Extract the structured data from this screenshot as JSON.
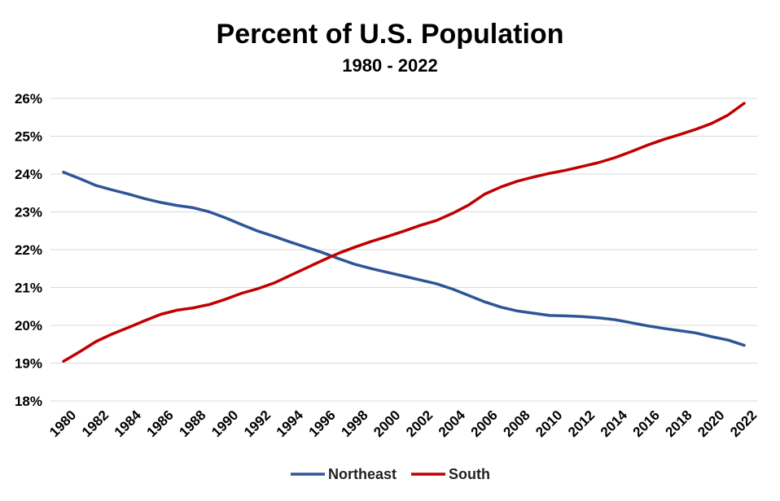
{
  "chart_data": {
    "type": "line",
    "title": "Percent of U.S. Population",
    "subtitle": "1980 - 2022",
    "xlabel": "",
    "ylabel": "",
    "x": [
      1980,
      1981,
      1982,
      1983,
      1984,
      1985,
      1986,
      1987,
      1988,
      1989,
      1990,
      1991,
      1992,
      1993,
      1994,
      1995,
      1996,
      1997,
      1998,
      1999,
      2000,
      2001,
      2002,
      2003,
      2004,
      2005,
      2006,
      2007,
      2008,
      2009,
      2010,
      2011,
      2012,
      2013,
      2014,
      2015,
      2016,
      2017,
      2018,
      2019,
      2020,
      2021,
      2022
    ],
    "x_tick_labels": [
      "1980",
      "1982",
      "1984",
      "1986",
      "1988",
      "1990",
      "1992",
      "1994",
      "1996",
      "1998",
      "2000",
      "2002",
      "2004",
      "2006",
      "2008",
      "2010",
      "2012",
      "2014",
      "2016",
      "2018",
      "2020",
      "2022"
    ],
    "ylim": [
      18,
      26
    ],
    "y_tick_labels": [
      "18%",
      "19%",
      "20%",
      "21%",
      "22%",
      "23%",
      "24%",
      "25%",
      "26%"
    ],
    "grid": true,
    "legend_position": "bottom",
    "series": [
      {
        "name": "Northeast",
        "color": "#2f5597",
        "values": [
          24.05,
          23.88,
          23.7,
          23.58,
          23.47,
          23.35,
          23.25,
          23.17,
          23.11,
          23.0,
          22.84,
          22.66,
          22.49,
          22.35,
          22.2,
          22.06,
          21.92,
          21.76,
          21.61,
          21.5,
          21.4,
          21.3,
          21.2,
          21.1,
          20.96,
          20.79,
          20.62,
          20.48,
          20.38,
          20.32,
          20.26,
          20.25,
          20.23,
          20.2,
          20.15,
          20.07,
          19.99,
          19.92,
          19.86,
          19.8,
          19.7,
          19.61,
          19.47
        ]
      },
      {
        "name": "South",
        "color": "#c00000",
        "values": [
          19.05,
          19.3,
          19.57,
          19.77,
          19.94,
          20.12,
          20.29,
          20.4,
          20.46,
          20.55,
          20.69,
          20.85,
          20.97,
          21.12,
          21.32,
          21.52,
          21.72,
          21.91,
          22.07,
          22.22,
          22.35,
          22.49,
          22.64,
          22.77,
          22.96,
          23.18,
          23.47,
          23.66,
          23.81,
          23.92,
          24.02,
          24.1,
          24.2,
          24.3,
          24.43,
          24.59,
          24.76,
          24.91,
          25.04,
          25.18,
          25.34,
          25.56,
          25.87
        ]
      }
    ]
  }
}
